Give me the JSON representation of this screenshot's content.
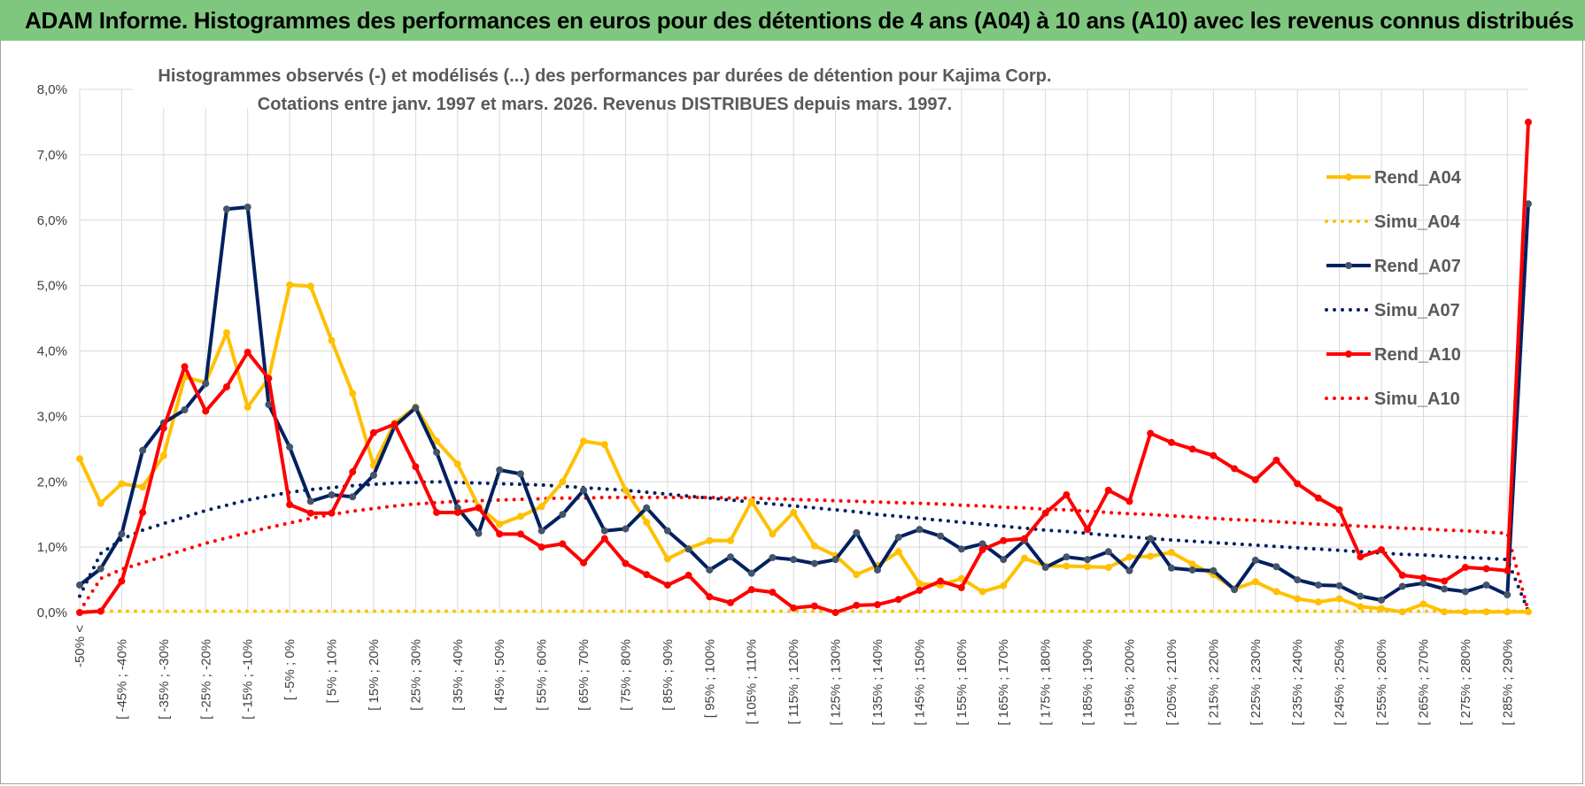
{
  "banner": {
    "title": "ADAM Informe. Histogrammes des performances en euros pour des détentions de 4 ans (A04) à 10 ans (A10) avec les revenus connus distribués",
    "color": "#7fc77f"
  },
  "chart_data": {
    "type": "line",
    "title": "Histogrammes observés (-) et modélisés (...) des performances par durées de détention pour Kajima Corp.",
    "subtitle": "Cotations entre janv. 1997 et mars. 2026.  Revenus DISTRIBUES depuis mars. 1997.",
    "xlabel": "",
    "ylabel": "",
    "ylim": [
      0,
      8
    ],
    "y_ticks": [
      "0,0%",
      "1,0%",
      "2,0%",
      "3,0%",
      "4,0%",
      "5,0%",
      "6,0%",
      "7,0%",
      "8,0%"
    ],
    "grid": true,
    "legend_position": "top-right",
    "x_tick_labels": [
      "-50% <",
      "[ -45% ; -40%",
      "[ -35% ; -30%",
      "[ -25% ; -20%",
      "[ -15% ; -10%",
      "[ -5% ; 0%",
      "[ 5% ; 10%",
      "[ 15% ; 20%",
      "[ 25% ; 30%",
      "[ 35% ; 40%",
      "[ 45% ; 50%",
      "[ 55% ; 60%",
      "[ 65% ; 70%",
      "[ 75% ; 80%",
      "[ 85% ; 90%",
      "[ 95% ; 100%",
      "[ 105% ; 110%",
      "[ 115% ; 120%",
      "[ 125% ; 130%",
      "[ 135% ; 140%",
      "[ 145% ; 150%",
      "[ 155% ; 160%",
      "[ 165% ; 170%",
      "[ 175% ; 180%",
      "[ 185% ; 190%",
      "[ 195% ; 200%",
      "[ 205% ; 210%",
      "[ 215% ; 220%",
      "[ 225% ; 230%",
      "[ 235% ; 240%",
      "[ 245% ; 250%",
      "[ 255% ; 260%",
      "[ 265% ; 270%",
      "[ 275% ; 280%",
      "[ 285% ; 290%"
    ],
    "series": [
      {
        "name": "Rend_A04",
        "style": "solid",
        "color": "#FFC000",
        "values": [
          2.35,
          1.67,
          1.97,
          1.92,
          2.4,
          3.6,
          3.52,
          4.28,
          3.14,
          3.58,
          5.01,
          4.99,
          4.16,
          3.35,
          2.25,
          2.9,
          3.14,
          2.62,
          2.27,
          1.62,
          1.35,
          1.47,
          1.62,
          2.0,
          2.62,
          2.57,
          1.87,
          1.38,
          0.82,
          0.98,
          1.1,
          1.1,
          1.7,
          1.2,
          1.53,
          1.02,
          0.87,
          0.58,
          0.72,
          0.93,
          0.44,
          0.42,
          0.52,
          0.32,
          0.41,
          0.83,
          0.71,
          0.71,
          0.7,
          0.69,
          0.85,
          0.86,
          0.92,
          0.74,
          0.58,
          0.36,
          0.47,
          0.32,
          0.21,
          0.16,
          0.21,
          0.09,
          0.06,
          0.01,
          0.13,
          0.01,
          0.01,
          0.01,
          0.01,
          0.01
        ]
      },
      {
        "name": "Simu_A04",
        "style": "dotted",
        "color": "#FFC000",
        "values": [
          0.02,
          0.02,
          0.02,
          0.02,
          0.02,
          0.02,
          0.02,
          0.02,
          0.02,
          0.02,
          0.02,
          0.02,
          0.02,
          0.02,
          0.02,
          0.02,
          0.02,
          0.02,
          0.02,
          0.02,
          0.02,
          0.02,
          0.02,
          0.02,
          0.02,
          0.02,
          0.02,
          0.02,
          0.02,
          0.02,
          0.02,
          0.02,
          0.02,
          0.02,
          0.02,
          0.02,
          0.02,
          0.02,
          0.02,
          0.02,
          0.02,
          0.02,
          0.02,
          0.02,
          0.02,
          0.02,
          0.02,
          0.02,
          0.02,
          0.02,
          0.02,
          0.02,
          0.02,
          0.02,
          0.02,
          0.02,
          0.02,
          0.02,
          0.02,
          0.02,
          0.02,
          0.02,
          0.02,
          0.02,
          0.02,
          0.02,
          0.02,
          0.02,
          0.02,
          0.02
        ]
      },
      {
        "name": "Rend_A07",
        "style": "solid",
        "color": "#002060",
        "values": [
          0.42,
          0.67,
          1.2,
          2.48,
          2.9,
          3.1,
          3.5,
          6.17,
          6.2,
          3.18,
          2.53,
          1.7,
          1.8,
          1.77,
          2.1,
          2.85,
          3.13,
          2.45,
          1.6,
          1.21,
          2.18,
          2.12,
          1.25,
          1.5,
          1.87,
          1.25,
          1.28,
          1.6,
          1.25,
          0.97,
          0.65,
          0.85,
          0.6,
          0.84,
          0.81,
          0.75,
          0.81,
          1.22,
          0.65,
          1.15,
          1.27,
          1.17,
          0.97,
          1.05,
          0.81,
          1.1,
          0.69,
          0.85,
          0.81,
          0.93,
          0.64,
          1.13,
          0.68,
          0.65,
          0.64,
          0.35,
          0.8,
          0.7,
          0.5,
          0.42,
          0.41,
          0.25,
          0.19,
          0.4,
          0.45,
          0.36,
          0.32,
          0.42,
          0.27,
          6.25
        ]
      },
      {
        "name": "Simu_A07",
        "style": "dotted",
        "color": "#002060",
        "values": [
          0.25,
          0.9,
          1.12,
          1.26,
          1.36,
          1.46,
          1.56,
          1.64,
          1.72,
          1.78,
          1.84,
          1.88,
          1.91,
          1.94,
          1.96,
          1.98,
          1.99,
          2.0,
          1.99,
          1.98,
          1.97,
          1.96,
          1.95,
          1.93,
          1.91,
          1.89,
          1.87,
          1.84,
          1.81,
          1.78,
          1.75,
          1.72,
          1.69,
          1.66,
          1.63,
          1.6,
          1.57,
          1.54,
          1.5,
          1.47,
          1.44,
          1.41,
          1.38,
          1.35,
          1.32,
          1.29,
          1.26,
          1.24,
          1.21,
          1.18,
          1.16,
          1.13,
          1.11,
          1.09,
          1.07,
          1.05,
          1.03,
          1.01,
          0.99,
          0.97,
          0.95,
          0.93,
          0.91,
          0.89,
          0.88,
          0.86,
          0.84,
          0.83,
          0.81,
          0.02
        ]
      },
      {
        "name": "Rend_A10",
        "style": "solid",
        "color": "#FF0000",
        "values": [
          0.0,
          0.02,
          0.48,
          1.53,
          2.82,
          3.76,
          3.08,
          3.45,
          3.98,
          3.58,
          1.65,
          1.52,
          1.52,
          2.15,
          2.75,
          2.88,
          2.23,
          1.53,
          1.53,
          1.6,
          1.2,
          1.2,
          1.0,
          1.05,
          0.76,
          1.13,
          0.75,
          0.58,
          0.42,
          0.57,
          0.24,
          0.15,
          0.35,
          0.31,
          0.07,
          0.1,
          0.0,
          0.11,
          0.12,
          0.2,
          0.34,
          0.48,
          0.38,
          0.96,
          1.1,
          1.13,
          1.52,
          1.8,
          1.27,
          1.87,
          1.7,
          2.74,
          2.6,
          2.5,
          2.4,
          2.2,
          2.03,
          2.33,
          1.97,
          1.75,
          1.57,
          0.85,
          0.96,
          0.57,
          0.53,
          0.48,
          0.69,
          0.67,
          0.64,
          7.5
        ]
      },
      {
        "name": "Simu_A10",
        "style": "dotted",
        "color": "#FF0000",
        "values": [
          0.02,
          0.52,
          0.66,
          0.76,
          0.86,
          0.96,
          1.06,
          1.14,
          1.22,
          1.3,
          1.37,
          1.44,
          1.5,
          1.55,
          1.59,
          1.63,
          1.66,
          1.68,
          1.7,
          1.71,
          1.72,
          1.73,
          1.74,
          1.75,
          1.75,
          1.76,
          1.76,
          1.76,
          1.76,
          1.76,
          1.76,
          1.75,
          1.75,
          1.74,
          1.73,
          1.72,
          1.71,
          1.7,
          1.69,
          1.68,
          1.67,
          1.66,
          1.64,
          1.63,
          1.61,
          1.6,
          1.58,
          1.57,
          1.55,
          1.53,
          1.51,
          1.5,
          1.48,
          1.46,
          1.44,
          1.42,
          1.41,
          1.39,
          1.37,
          1.35,
          1.34,
          1.32,
          1.31,
          1.29,
          1.28,
          1.26,
          1.25,
          1.23,
          1.21,
          0.02
        ]
      }
    ]
  }
}
